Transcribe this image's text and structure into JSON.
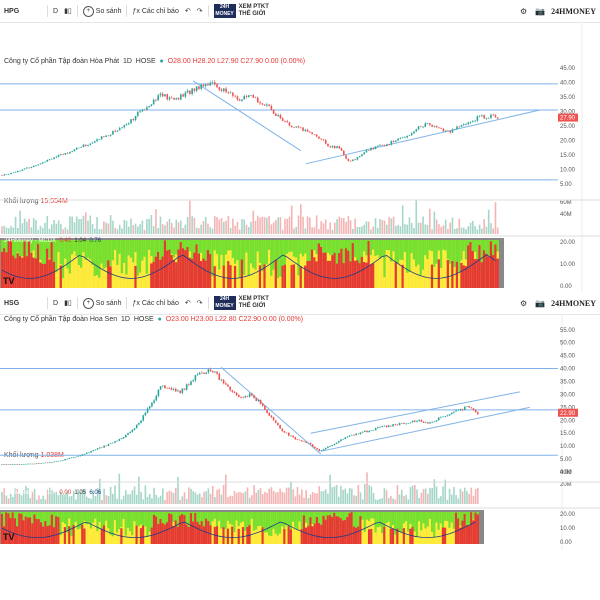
{
  "panels": [
    {
      "symbol": "HPG",
      "interval": "D",
      "compare_label": "So sánh",
      "indicators_label": "Các chỉ báo",
      "logo_text": "XEM PTKT\nTHẾ GIỚI",
      "brand": "24HMONEY",
      "company": "Công ty Cổ phần Tập đoàn Hòa Phát",
      "timeframe": "1D",
      "exchange": "HOSE",
      "ohlc": "O28.00  H28.20  L27.90  C27.90  0.00 (0.00%)",
      "volume_label": "Khối lượng",
      "volume_value": "15.554M",
      "indicator_label": "24HMoney - MCDX",
      "indicator_values": [
        "0.42",
        "1.04",
        "0.76"
      ],
      "price_ticks": [
        "45.00",
        "40.00",
        "35.00",
        "30.00",
        "25.00",
        "20.00",
        "15.00",
        "10.00",
        "5.00"
      ],
      "current_price": "27.90",
      "volume_ticks": [
        "60M",
        "40M"
      ],
      "mcdx_ticks": [
        "20.00",
        "10.00",
        "0.00"
      ]
    },
    {
      "symbol": "HSG",
      "interval": "D",
      "compare_label": "So sánh",
      "indicators_label": "Các chỉ báo",
      "logo_text": "XEM PTKT\nTHẾ GIỚI",
      "brand": "24HMONEY",
      "company": "Công ty Cổ phần Tập đoàn Hoa Sen",
      "timeframe": "1D",
      "exchange": "HOSE",
      "ohlc": "O23.00  H23.00  L22.80  C22.90  0.00 (0.00%)",
      "volume_label": "Khối lượng",
      "volume_value": "1.038M",
      "indicator_label": "24HMoney - MCDX",
      "indicator_values": [
        "0.00",
        "1.05",
        "6.06"
      ],
      "price_ticks": [
        "55.00",
        "50.00",
        "45.00",
        "40.00",
        "35.00",
        "30.00",
        "25.00",
        "20.00",
        "15.00",
        "10.00",
        "5.00",
        "0.00"
      ],
      "current_price": "22.90",
      "volume_ticks": [
        "40M",
        "20M"
      ],
      "mcdx_ticks": [
        "20.00",
        "10.00",
        "0.00"
      ]
    }
  ],
  "chart_data": [
    {
      "type": "line",
      "title": "HPG",
      "ylim": [
        3,
        47
      ],
      "x": [
        0,
        10,
        20,
        30,
        40,
        50,
        60,
        70,
        80,
        90,
        100,
        110,
        120,
        130,
        140,
        150,
        160,
        170,
        180,
        190,
        200,
        210,
        220,
        230,
        240,
        250,
        260,
        270,
        280,
        290,
        300,
        310,
        320,
        330,
        340,
        350,
        360,
        370,
        380,
        390,
        400,
        410,
        420,
        430,
        440,
        450,
        460,
        470,
        480,
        490,
        500
      ],
      "series": [
        {
          "values": [
            8,
            9,
            10,
            11,
            12.5,
            14,
            15,
            16.5,
            18,
            19,
            21,
            22.5,
            24.5,
            27,
            30,
            33,
            36,
            34,
            35,
            37,
            39,
            40,
            38,
            36,
            34,
            35,
            33.5,
            31,
            28,
            25,
            24,
            23,
            21,
            18,
            17.5,
            12.5,
            14.5,
            17,
            18,
            19,
            20.5,
            22,
            24.5,
            26,
            24,
            23,
            24.5,
            26,
            28,
            28.5,
            27.9
          ]
        }
      ],
      "horizontal_levels": [
        39.5,
        30.5,
        6.5
      ],
      "trendlines": [
        [
          [
            192,
            40.5
          ],
          [
            300,
            16.5
          ]
        ],
        [
          [
            305,
            12
          ],
          [
            540,
            30.5
          ]
        ]
      ],
      "mcdx_colors": [
        "#ffeb3b",
        "#76e030",
        "#e53935"
      ]
    },
    {
      "type": "line",
      "title": "HSG",
      "ylim": [
        0,
        58
      ],
      "x": [
        0,
        10,
        20,
        30,
        40,
        50,
        60,
        70,
        80,
        90,
        100,
        110,
        120,
        130,
        140,
        150,
        160,
        170,
        180,
        190,
        200,
        210,
        220,
        230,
        240,
        250,
        260,
        270,
        280,
        290,
        300,
        310,
        320,
        330,
        340,
        350,
        360,
        370,
        380,
        390,
        400,
        410,
        420,
        430,
        440,
        450,
        460,
        470,
        480
      ],
      "series": [
        {
          "values": [
            3,
            3,
            3,
            3.2,
            3.5,
            3.8,
            4.5,
            5.5,
            6.5,
            8,
            9.5,
            11,
            13,
            15.5,
            20,
            26,
            33,
            32,
            31,
            35,
            38,
            40,
            36,
            32,
            28,
            30,
            27,
            22,
            17,
            14,
            12,
            11,
            8,
            10,
            12,
            14,
            15,
            16,
            17,
            18,
            18.5,
            19,
            20,
            19,
            20.5,
            22,
            24,
            25,
            22.9
          ]
        }
      ],
      "horizontal_levels": [
        40,
        24,
        6.5
      ],
      "trendlines": [
        [
          [
            220,
            40.5
          ],
          [
            320,
            7
          ]
        ],
        [
          [
            310,
            15
          ],
          [
            520,
            31
          ]
        ],
        [
          [
            320,
            8
          ],
          [
            530,
            25
          ]
        ]
      ],
      "mcdx_colors": [
        "#ffeb3b",
        "#76e030",
        "#e53935"
      ]
    }
  ]
}
